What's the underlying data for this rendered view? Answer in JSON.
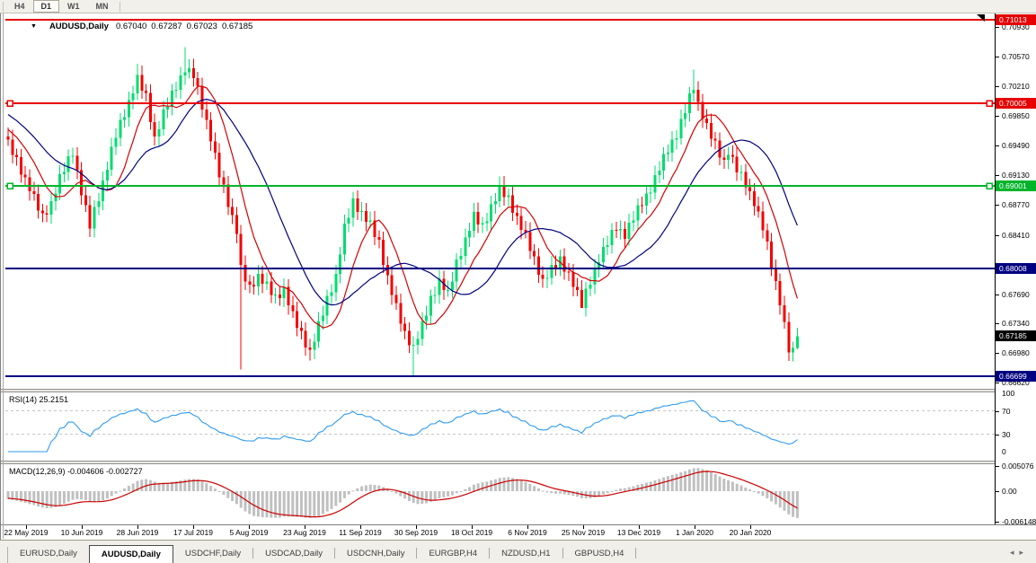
{
  "toolbar": {
    "timeframe_buttons": [
      {
        "label": "H4",
        "active": false
      },
      {
        "label": "D1",
        "active": true
      },
      {
        "label": "W1",
        "active": false
      },
      {
        "label": "MN",
        "active": false
      }
    ]
  },
  "chart_header": {
    "dropdown_icon": "▼",
    "title": "AUDUSD,Daily",
    "open": "0.67040",
    "high": "0.67287",
    "low": "0.67023",
    "close": "0.67185"
  },
  "price_axis": {
    "tick_labels": [
      {
        "label": "0.70930",
        "price": 0.7093
      },
      {
        "label": "0.70570",
        "price": 0.7057
      },
      {
        "label": "0.70210",
        "price": 0.7021
      },
      {
        "label": "0.69850",
        "price": 0.6985
      },
      {
        "label": "0.69490",
        "price": 0.6949
      },
      {
        "label": "0.69130",
        "price": 0.6913
      },
      {
        "label": "0.68770",
        "price": 0.6877
      },
      {
        "label": "0.68410",
        "price": 0.6841
      },
      {
        "label": "0.67690",
        "price": 0.6769
      },
      {
        "label": "0.67340",
        "price": 0.6734
      },
      {
        "label": "0.66980",
        "price": 0.6698
      },
      {
        "label": "0.66620",
        "price": 0.6662
      }
    ],
    "badges": [
      {
        "label": "0.71013",
        "price": 0.71013,
        "color": "#E60000"
      },
      {
        "label": "0.70005",
        "price": 0.70005,
        "color": "#E60000"
      },
      {
        "label": "0.69001",
        "price": 0.69001,
        "color": "#00B42A"
      },
      {
        "label": "0.68008",
        "price": 0.68008,
        "color": "#000080"
      },
      {
        "label": "0.67185",
        "price": 0.67185,
        "color": "#000000"
      },
      {
        "label": "0.66699",
        "price": 0.66699,
        "color": "#000080"
      }
    ]
  },
  "levels": [
    {
      "price": 0.71013,
      "color": "#E80000",
      "handles": false
    },
    {
      "price": 0.70005,
      "color": "#E80000",
      "handles": true
    },
    {
      "price": 0.69001,
      "color": "#00B42A",
      "handles": true
    },
    {
      "price": 0.68008,
      "color": "#000080",
      "handles": false
    },
    {
      "price": 0.66699,
      "color": "#000080",
      "handles": false
    }
  ],
  "rsi_panel": {
    "label": "RSI(14) 25.2151",
    "period": 14,
    "current": 25.2151,
    "scale_labels": [
      {
        "label": "100",
        "value": 100
      },
      {
        "label": "70",
        "value": 70
      },
      {
        "label": "30",
        "value": 30
      },
      {
        "label": "0",
        "value": 0
      }
    ],
    "dashed_levels": [
      70,
      30
    ],
    "line_color": "#2E9BF0"
  },
  "macd_panel": {
    "label": "MACD(12,26,9) -0.004606 -0.002727",
    "macd_current": -0.004606,
    "signal_current": -0.002727,
    "scale_labels": [
      {
        "label": "0.005076",
        "value": 0.005076
      },
      {
        "label": "0.00",
        "value": 0
      },
      {
        "label": "-0.006148",
        "value": -0.006148
      }
    ],
    "hist_color": "#C0C0C0",
    "signal_color": "#CC0000"
  },
  "time_axis": {
    "labels": [
      "22 May 2019",
      "10 Jun 2019",
      "28 Jun 2019",
      "17 Jul 2019",
      "5 Aug 2019",
      "23 Aug 2019",
      "11 Sep 2019",
      "30 Sep 2019",
      "18 Oct 2019",
      "6 Nov 2019",
      "25 Nov 2019",
      "13 Dec 2019",
      "1 Jan 2020",
      "20 Jan 2020"
    ]
  },
  "tabs": {
    "items": [
      {
        "label": "EURUSD,Daily",
        "active": false
      },
      {
        "label": "AUDUSD,Daily",
        "active": true
      },
      {
        "label": "USDCHF,Daily",
        "active": false
      },
      {
        "label": "USDCAD,Daily",
        "active": false
      },
      {
        "label": "USDCNH,Daily",
        "active": false
      },
      {
        "label": "EURGBP,H4",
        "active": false
      },
      {
        "label": "NZDUSD,H1",
        "active": false
      },
      {
        "label": "GBPUSD,H4",
        "active": false
      }
    ],
    "scroll_left_icon": "◂",
    "scroll_right_icon": "▸"
  },
  "chart_data": {
    "type": "candlestick",
    "symbol": "AUDUSD",
    "timeframe": "Daily",
    "ohlc_current": {
      "open": 0.6704,
      "high": 0.67287,
      "low": 0.67023,
      "close": 0.67185
    },
    "visible_price_range": [
      0.6662,
      0.71013
    ],
    "horizontal_levels": [
      0.71013,
      0.70005,
      0.69001,
      0.68008,
      0.66699
    ],
    "up_color": "#00DC6E",
    "down_color": "#F40000",
    "ma_fast_color": "#D40000",
    "ma_slow_color": "#000080",
    "close_anchors": [
      [
        0,
        0.6952
      ],
      [
        2,
        0.693
      ],
      [
        5,
        0.6898
      ],
      [
        8,
        0.6862
      ],
      [
        10,
        0.688
      ],
      [
        12,
        0.691
      ],
      [
        15,
        0.6942
      ],
      [
        17,
        0.6893
      ],
      [
        19,
        0.6852
      ],
      [
        22,
        0.6905
      ],
      [
        25,
        0.6962
      ],
      [
        28,
        0.7002
      ],
      [
        30,
        0.703
      ],
      [
        32,
        0.7008
      ],
      [
        34,
        0.6958
      ],
      [
        36,
        0.6988
      ],
      [
        39,
        0.7022
      ],
      [
        41,
        0.7042
      ],
      [
        43,
        0.7034
      ],
      [
        45,
        0.6998
      ],
      [
        47,
        0.6958
      ],
      [
        49,
        0.6914
      ],
      [
        51,
        0.688
      ],
      [
        53,
        0.6846
      ],
      [
        54,
        0.68
      ],
      [
        56,
        0.6776
      ],
      [
        58,
        0.6792
      ],
      [
        60,
        0.678
      ],
      [
        62,
        0.6764
      ],
      [
        64,
        0.6776
      ],
      [
        66,
        0.6744
      ],
      [
        68,
        0.672
      ],
      [
        70,
        0.67
      ],
      [
        72,
        0.6732
      ],
      [
        74,
        0.6762
      ],
      [
        76,
        0.6792
      ],
      [
        78,
        0.685
      ],
      [
        80,
        0.688
      ],
      [
        82,
        0.6868
      ],
      [
        84,
        0.6854
      ],
      [
        86,
        0.683
      ],
      [
        88,
        0.679
      ],
      [
        90,
        0.6754
      ],
      [
        92,
        0.672
      ],
      [
        94,
        0.6706
      ],
      [
        96,
        0.6732
      ],
      [
        98,
        0.6762
      ],
      [
        100,
        0.6786
      ],
      [
        102,
        0.677
      ],
      [
        104,
        0.6806
      ],
      [
        106,
        0.6836
      ],
      [
        108,
        0.6864
      ],
      [
        110,
        0.685
      ],
      [
        112,
        0.6876
      ],
      [
        114,
        0.6896
      ],
      [
        116,
        0.6884
      ],
      [
        118,
        0.6862
      ],
      [
        120,
        0.684
      ],
      [
        122,
        0.681
      ],
      [
        124,
        0.6786
      ],
      [
        126,
        0.68
      ],
      [
        128,
        0.681
      ],
      [
        130,
        0.6794
      ],
      [
        132,
        0.677
      ],
      [
        133,
        0.6756
      ],
      [
        135,
        0.6786
      ],
      [
        137,
        0.6812
      ],
      [
        139,
        0.6832
      ],
      [
        141,
        0.6852
      ],
      [
        143,
        0.684
      ],
      [
        145,
        0.6862
      ],
      [
        147,
        0.6882
      ],
      [
        149,
        0.6896
      ],
      [
        151,
        0.6922
      ],
      [
        153,
        0.6946
      ],
      [
        155,
        0.6962
      ],
      [
        157,
        0.6992
      ],
      [
        159,
        0.7022
      ],
      [
        160,
        0.7
      ],
      [
        162,
        0.6972
      ],
      [
        164,
        0.695
      ],
      [
        166,
        0.693
      ],
      [
        167,
        0.6942
      ],
      [
        169,
        0.692
      ],
      [
        171,
        0.6904
      ],
      [
        173,
        0.688
      ],
      [
        175,
        0.685
      ],
      [
        177,
        0.6806
      ],
      [
        179,
        0.676
      ],
      [
        181,
        0.6702
      ],
      [
        182,
        0.6704
      ],
      [
        183,
        0.67185
      ]
    ],
    "wick_overrides": [
      {
        "bar": 30,
        "high": 0.7048
      },
      {
        "bar": 41,
        "high": 0.7068
      },
      {
        "bar": 54,
        "low": 0.6678
      },
      {
        "bar": 70,
        "low": 0.6689
      },
      {
        "bar": 94,
        "low": 0.6671
      },
      {
        "bar": 133,
        "low": 0.6754
      },
      {
        "bar": 159,
        "high": 0.7041
      },
      {
        "bar": 183,
        "low": 0.67023,
        "high": 0.67287
      }
    ],
    "indicators": {
      "rsi": {
        "period": 14,
        "current": 25.2151,
        "overbought": 70,
        "oversold": 30
      },
      "macd": {
        "fast": 12,
        "slow": 26,
        "signal": 9,
        "macd_current": -0.004606,
        "signal_current": -0.002727
      },
      "moving_averages": [
        {
          "name": "fast",
          "color": "#D40000"
        },
        {
          "name": "slow",
          "color": "#000080"
        }
      ]
    }
  }
}
